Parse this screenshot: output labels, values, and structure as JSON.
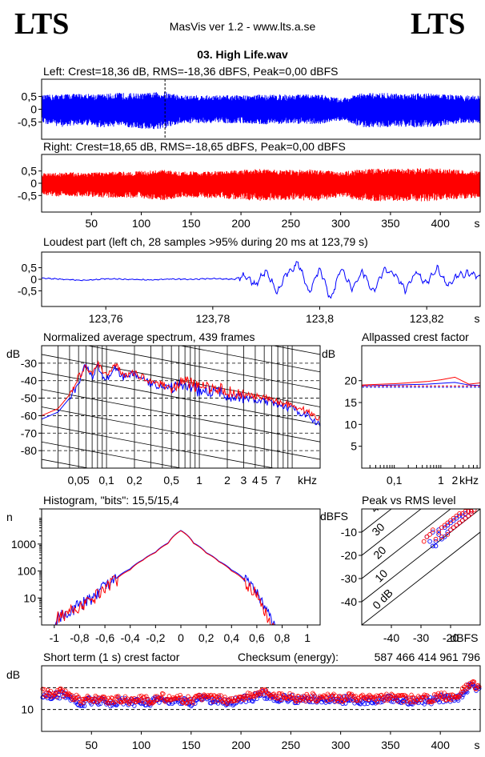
{
  "header": {
    "logo_left": "LTS",
    "logo_right": "LTS",
    "app_title": "MasVis ver 1.2 - www.lts.a.se",
    "file_title": "03. High Life.wav"
  },
  "colors": {
    "left": "#0000ff",
    "right": "#ff0000",
    "axis": "#000000"
  },
  "chart_data": [
    {
      "id": "left-waveform",
      "type": "area",
      "title": "Left: Crest=18,36 dB, RMS=-18,36 dBFS, Peak=0,00 dBFS",
      "yticks": [
        "0,5",
        "0",
        "-0,5"
      ],
      "ylim": [
        -1,
        1
      ],
      "xlim": [
        0,
        440
      ],
      "marker_x": 123.79,
      "envelope": {
        "x": [
          0,
          20,
          40,
          60,
          80,
          100,
          123,
          140,
          160,
          180,
          200,
          220,
          240,
          260,
          280,
          300,
          320,
          340,
          360,
          380,
          400,
          420,
          440
        ],
        "upper": [
          0.55,
          0.6,
          0.62,
          0.6,
          0.65,
          0.62,
          0.7,
          0.55,
          0.55,
          0.55,
          0.55,
          0.58,
          0.58,
          0.58,
          0.58,
          0.42,
          0.62,
          0.65,
          0.62,
          0.65,
          0.6,
          0.55,
          0.55
        ],
        "lower": [
          -0.55,
          -0.7,
          -0.62,
          -0.72,
          -0.68,
          -0.78,
          -0.8,
          -0.55,
          -0.55,
          -0.55,
          -0.55,
          -0.6,
          -0.58,
          -0.58,
          -0.58,
          -0.45,
          -0.7,
          -0.72,
          -0.68,
          -0.72,
          -0.68,
          -0.55,
          -0.55
        ]
      }
    },
    {
      "id": "right-waveform",
      "type": "area",
      "title": "Right: Crest=18,65 dB, RMS=-18,65 dBFS, Peak=0,00 dBFS",
      "yticks": [
        "0,5",
        "0",
        "-0,5"
      ],
      "xticks": [
        "50",
        "100",
        "150",
        "200",
        "250",
        "300",
        "350",
        "400"
      ],
      "xtick_values": [
        50,
        100,
        150,
        200,
        250,
        300,
        350,
        400
      ],
      "xunit": "s",
      "ylim": [
        -1,
        1
      ],
      "xlim": [
        0,
        440
      ],
      "envelope": {
        "x": [
          0,
          20,
          40,
          60,
          80,
          100,
          123,
          140,
          160,
          180,
          200,
          220,
          240,
          260,
          280,
          300,
          320,
          340,
          360,
          380,
          400,
          420,
          440
        ],
        "upper": [
          0.4,
          0.45,
          0.45,
          0.45,
          0.48,
          0.5,
          0.55,
          0.48,
          0.48,
          0.5,
          0.55,
          0.58,
          0.55,
          0.55,
          0.58,
          0.45,
          0.58,
          0.6,
          0.6,
          0.62,
          0.6,
          0.55,
          0.5
        ],
        "lower": [
          -0.5,
          -0.55,
          -0.55,
          -0.58,
          -0.6,
          -0.62,
          -0.7,
          -0.58,
          -0.6,
          -0.62,
          -0.68,
          -0.72,
          -0.68,
          -0.7,
          -0.72,
          -0.55,
          -0.72,
          -0.75,
          -0.72,
          -0.75,
          -0.7,
          -0.65,
          -0.6
        ]
      }
    },
    {
      "id": "loudest-part",
      "type": "line",
      "title": "Loudest part (left  ch, 28 samples >95% during 20 ms at 123,79 s)",
      "yticks": [
        "0,5",
        "0",
        "-0,5"
      ],
      "xticks": [
        "123,76",
        "123,78",
        "123,8",
        "123,82"
      ],
      "xtick_values": [
        123.76,
        123.78,
        123.8,
        123.82
      ],
      "xunit": "s",
      "xlim": [
        123.748,
        123.83
      ],
      "ylim": [
        -1,
        1
      ],
      "x": [
        123.748,
        123.752,
        123.756,
        123.76,
        123.764,
        123.768,
        123.772,
        123.776,
        123.78,
        123.784,
        123.786,
        123.788,
        123.79,
        123.792,
        123.794,
        123.796,
        123.798,
        123.8,
        123.802,
        123.804,
        123.806,
        123.808,
        123.81,
        123.812,
        123.814,
        123.816,
        123.818,
        123.82,
        123.822,
        123.824,
        123.826,
        123.828,
        123.83
      ],
      "y": [
        0.05,
        0.0,
        -0.05,
        0.02,
        0.0,
        -0.03,
        0.01,
        0.0,
        0.03,
        0.0,
        0.15,
        -0.25,
        0.4,
        -0.55,
        0.3,
        0.7,
        -0.6,
        0.5,
        -0.85,
        0.45,
        -0.4,
        0.35,
        -0.55,
        0.4,
        0.2,
        -0.45,
        0.3,
        -0.2,
        0.5,
        -0.3,
        0.2,
        0.25,
        0.1
      ]
    },
    {
      "id": "average-spectrum",
      "type": "line",
      "title": "Normalized average spectrum, 439 frames",
      "ylabel": "dB",
      "yticks": [
        "-30",
        "-40",
        "-50",
        "-60",
        "-70",
        "-80"
      ],
      "ytick_values": [
        -30,
        -40,
        -50,
        -60,
        -70,
        -80
      ],
      "xticks": [
        "0,05",
        "0,1",
        "0,2",
        "0,5",
        "1",
        "2",
        "3",
        "4",
        "5",
        "7"
      ],
      "xtick_values": [
        0.05,
        0.1,
        0.2,
        0.5,
        1,
        2,
        3,
        4,
        5,
        7
      ],
      "xunit": "kHz",
      "xscale": "log",
      "xlim": [
        0.02,
        20
      ],
      "ylim": [
        -90,
        -20
      ],
      "series": [
        {
          "name": "left",
          "x": [
            0.02,
            0.03,
            0.04,
            0.05,
            0.06,
            0.07,
            0.08,
            0.1,
            0.12,
            0.15,
            0.2,
            0.3,
            0.5,
            0.7,
            1,
            1.5,
            2,
            3,
            5,
            7,
            10,
            15,
            20
          ],
          "y": [
            -62,
            -58,
            -50,
            -42,
            -30,
            -38,
            -32,
            -40,
            -32,
            -38,
            -36,
            -42,
            -44,
            -42,
            -46,
            -46,
            -48,
            -50,
            -52,
            -54,
            -56,
            -60,
            -66
          ]
        },
        {
          "name": "right",
          "x": [
            0.02,
            0.03,
            0.04,
            0.05,
            0.06,
            0.07,
            0.08,
            0.1,
            0.12,
            0.15,
            0.2,
            0.3,
            0.5,
            0.7,
            1,
            1.5,
            2,
            3,
            5,
            7,
            10,
            15,
            20
          ],
          "y": [
            -60,
            -56,
            -48,
            -38,
            -32,
            -36,
            -30,
            -38,
            -30,
            -36,
            -36,
            -40,
            -44,
            -40,
            -44,
            -44,
            -46,
            -48,
            -50,
            -52,
            -54,
            -58,
            -62
          ]
        }
      ]
    },
    {
      "id": "allpassed-crest",
      "type": "line",
      "title": "Allpassed crest factor",
      "ylabel": "dB",
      "yticks": [
        "20",
        "15",
        "10",
        "5"
      ],
      "ytick_values": [
        20,
        15,
        10,
        5
      ],
      "xticks": [
        "0,1",
        "1",
        "2"
      ],
      "xtick_values": [
        0.1,
        1,
        2
      ],
      "xunit": "kHz",
      "xscale": "log",
      "xlim": [
        0.02,
        7
      ],
      "ylim": [
        0,
        28
      ],
      "series": [
        {
          "name": "left",
          "x": [
            0.02,
            0.1,
            0.5,
            1,
            2,
            4,
            7
          ],
          "y": [
            18.8,
            19.0,
            19.2,
            19.4,
            19.6,
            19.0,
            18.9
          ],
          "dashed": 18.5
        },
        {
          "name": "right",
          "x": [
            0.02,
            0.1,
            0.5,
            1,
            2,
            4,
            7
          ],
          "y": [
            19.0,
            19.3,
            19.8,
            20.2,
            20.8,
            19.2,
            19.5
          ],
          "dashed": 18.8
        }
      ]
    },
    {
      "id": "histogram",
      "type": "line",
      "title": "Histogram, \"bits\": 15,5/15,4",
      "ylabel": "n",
      "yticks": [
        "1000",
        "100",
        "10"
      ],
      "ytick_values": [
        1000,
        100,
        10
      ],
      "yscale": "log",
      "ylim": [
        1,
        20000
      ],
      "xticks": [
        "-1",
        "-0,8",
        "-0,6",
        "-0,4",
        "-0,2",
        "0",
        "0,2",
        "0,4",
        "0,6",
        "0,8",
        "1"
      ],
      "xtick_values": [
        -1,
        -0.8,
        -0.6,
        -0.4,
        -0.2,
        0,
        0.2,
        0.4,
        0.6,
        0.8,
        1
      ],
      "xlim": [
        -1.1,
        1.1
      ],
      "series": [
        {
          "name": "left",
          "x": [
            -0.98,
            -0.9,
            -0.8,
            -0.7,
            -0.6,
            -0.5,
            -0.4,
            -0.3,
            -0.2,
            -0.1,
            0,
            0.1,
            0.2,
            0.3,
            0.4,
            0.5,
            0.6,
            0.65,
            0.7
          ],
          "y": [
            2,
            3,
            6,
            10,
            30,
            60,
            120,
            260,
            500,
            1100,
            3200,
            1100,
            480,
            230,
            110,
            50,
            15,
            5,
            2
          ]
        },
        {
          "name": "right",
          "x": [
            -0.98,
            -0.9,
            -0.8,
            -0.7,
            -0.6,
            -0.5,
            -0.4,
            -0.3,
            -0.2,
            -0.1,
            0,
            0.1,
            0.2,
            0.3,
            0.4,
            0.5,
            0.6,
            0.65,
            0.7
          ],
          "y": [
            2,
            3,
            5,
            9,
            25,
            55,
            110,
            250,
            480,
            1050,
            3100,
            1050,
            460,
            220,
            100,
            45,
            12,
            4,
            1.5
          ]
        }
      ]
    },
    {
      "id": "peak-vs-rms",
      "type": "scatter",
      "title": "Peak vs RMS level",
      "ylabel": "dBFS",
      "xlabel": "dBFS",
      "yticks": [
        "-10",
        "-20",
        "-30",
        "-40"
      ],
      "ytick_values": [
        -10,
        -20,
        -30,
        -40
      ],
      "xticks": [
        "-40",
        "-30",
        "-20"
      ],
      "xtick_values": [
        -40,
        -30,
        -20
      ],
      "xlim": [
        -50,
        -10
      ],
      "ylim": [
        -50,
        0
      ],
      "diagonals": [
        "40",
        "30",
        "20",
        "10",
        "0 dB"
      ],
      "diagonal_values": [
        40,
        30,
        20,
        10,
        0
      ],
      "series": [
        {
          "name": "left",
          "x": [
            -28,
            -27,
            -26,
            -25,
            -24,
            -24,
            -23,
            -22,
            -22,
            -21,
            -21,
            -20,
            -20,
            -19,
            -19,
            -18,
            -18,
            -17,
            -17,
            -16,
            -16,
            -15,
            -15,
            -14,
            -14,
            -13,
            -13,
            -26,
            -25
          ],
          "y": [
            -12,
            -14,
            -10,
            -16,
            -11,
            -9,
            -13,
            -8,
            -12,
            -7,
            -10,
            -6,
            -9,
            -5,
            -8,
            -4,
            -7,
            -3,
            -6,
            -3,
            -5,
            -2,
            -4,
            -1,
            -3,
            -1,
            -2,
            -16,
            -14
          ]
        },
        {
          "name": "right",
          "x": [
            -27,
            -26,
            -25,
            -24,
            -23,
            -23,
            -22,
            -21,
            -21,
            -20,
            -20,
            -19,
            -19,
            -18,
            -18,
            -17,
            -17,
            -16,
            -16,
            -15,
            -15,
            -14,
            -14,
            -13,
            -13,
            -12,
            -29,
            -28
          ],
          "y": [
            -11,
            -9,
            -13,
            -10,
            -8,
            -12,
            -7,
            -11,
            -6,
            -9,
            -5,
            -8,
            -4,
            -7,
            -3,
            -6,
            -2,
            -5,
            -2,
            -4,
            -1,
            -3,
            -1,
            -2,
            -1,
            -0.5,
            -14,
            -12
          ]
        }
      ]
    },
    {
      "id": "short-term-crest",
      "type": "scatter",
      "title": "Short term (1 s) crest factor",
      "checksum_label": "Checksum (energy):",
      "checksum_value": "587 466 414 961 796",
      "ylabel": "dB",
      "yticks": [
        "10"
      ],
      "ytick_values": [
        10
      ],
      "xticks": [
        "50",
        "100",
        "150",
        "200",
        "250",
        "300",
        "350",
        "400"
      ],
      "xtick_values": [
        50,
        100,
        150,
        200,
        250,
        300,
        350,
        400
      ],
      "xunit": "s",
      "xlim": [
        0,
        440
      ],
      "ylim": [
        0,
        30
      ],
      "dashed_levels": [
        10,
        20
      ],
      "series": [
        {
          "name": "left",
          "x": [
            0,
            10,
            20,
            30,
            40,
            50,
            60,
            70,
            80,
            90,
            100,
            110,
            120,
            130,
            140,
            150,
            160,
            170,
            180,
            190,
            200,
            210,
            220,
            230,
            240,
            250,
            260,
            270,
            280,
            290,
            300,
            310,
            320,
            330,
            340,
            350,
            360,
            370,
            380,
            390,
            400,
            410,
            420,
            430,
            440
          ],
          "y": [
            17,
            16,
            17,
            15,
            13,
            14,
            14,
            13,
            14,
            13,
            14,
            13,
            15,
            13,
            14,
            13,
            15,
            14,
            14,
            13,
            15,
            15,
            17,
            16,
            15,
            15,
            14,
            15,
            14,
            15,
            14,
            15,
            14,
            14,
            14,
            15,
            14,
            14,
            14,
            14,
            15,
            15,
            16,
            21,
            19
          ]
        },
        {
          "name": "right",
          "x": [
            0,
            10,
            20,
            30,
            40,
            50,
            60,
            70,
            80,
            90,
            100,
            110,
            120,
            130,
            140,
            150,
            160,
            170,
            180,
            190,
            200,
            210,
            220,
            230,
            240,
            250,
            260,
            270,
            280,
            290,
            300,
            310,
            320,
            330,
            340,
            350,
            360,
            370,
            380,
            390,
            400,
            410,
            420,
            430,
            440
          ],
          "y": [
            18,
            17,
            18,
            16,
            14,
            15,
            15,
            14,
            15,
            14,
            15,
            14,
            16,
            14,
            15,
            14,
            16,
            15,
            15,
            14,
            16,
            16,
            18,
            17,
            16,
            16,
            15,
            16,
            15,
            16,
            15,
            16,
            15,
            15,
            15,
            16,
            15,
            15,
            15,
            15,
            16,
            16,
            17,
            22,
            20
          ]
        }
      ]
    }
  ]
}
